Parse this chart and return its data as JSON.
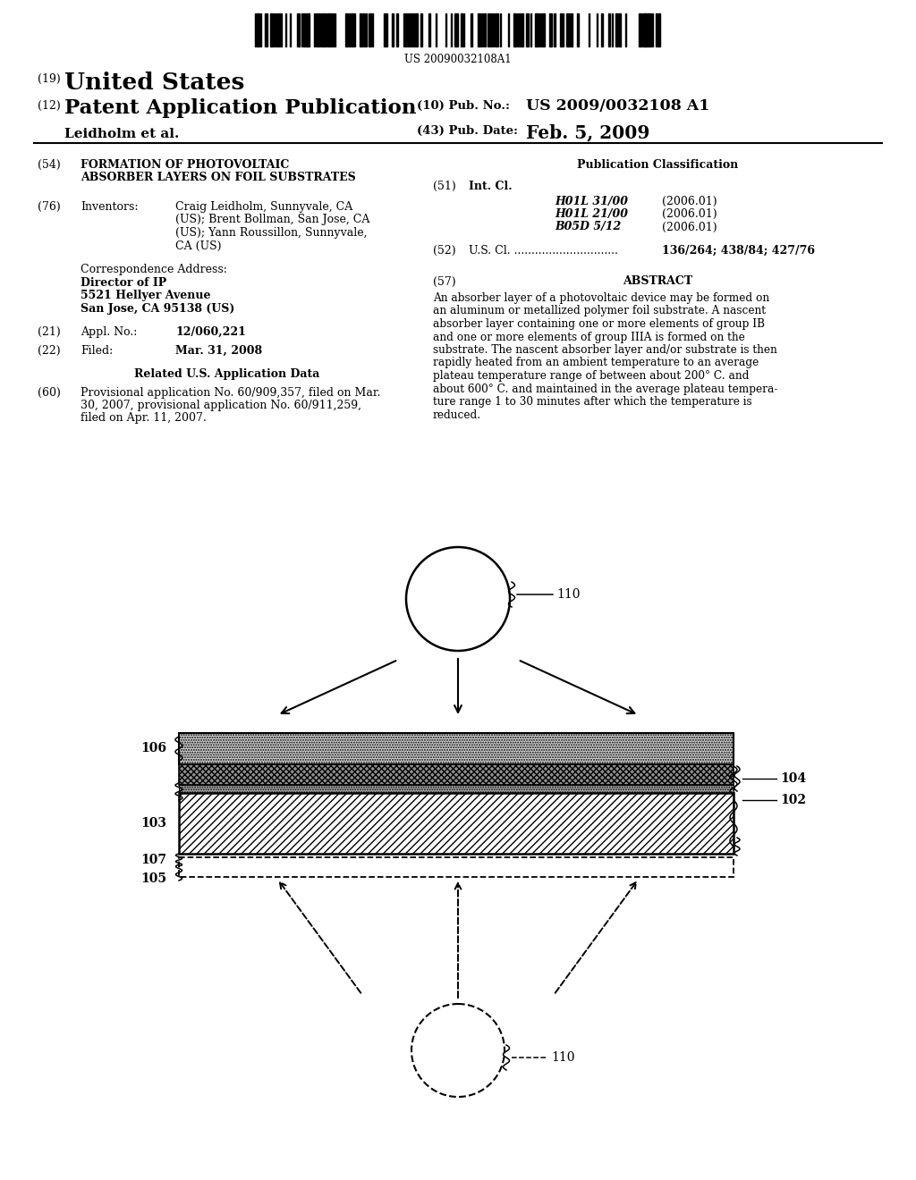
{
  "bg_color": "#ffffff",
  "barcode_text": "US 20090032108A1",
  "title_19": "(19)",
  "title_us": "United States",
  "title_12": "(12)",
  "title_patent": "Patent Application Publication",
  "title_inventors": "Leidholm et al.",
  "pub_no_label": "(10) Pub. No.:",
  "pub_no": "US 2009/0032108 A1",
  "pub_date_label": "(43) Pub. Date:",
  "pub_date": "Feb. 5, 2009",
  "field54_num": "(54)",
  "field54_line1": "FORMATION OF PHOTOVOLTAIC",
  "field54_line2": "ABSORBER LAYERS ON FOIL SUBSTRATES",
  "field76_num": "(76)",
  "field76_label": "Inventors:",
  "inv_line1": "Craig Leidholm, Sunnyvale, CA",
  "inv_line2": "(US); Brent Bollman, San Jose, CA",
  "inv_line3": "(US); Yann Roussillon, Sunnyvale,",
  "inv_line4": "CA (US)",
  "corr_label": "Correspondence Address:",
  "corr_name": "Director of IP",
  "corr_addr1": "5521 Hellyer Avenue",
  "corr_addr2": "San Jose, CA 95138 (US)",
  "field21_num": "(21)",
  "field21_label": "Appl. No.:",
  "field21_val": "12/060,221",
  "field22_num": "(22)",
  "field22_label": "Filed:",
  "field22_val": "Mar. 31, 2008",
  "related_title": "Related U.S. Application Data",
  "field60_num": "(60)",
  "field60_line1": "Provisional application No. 60/909,357, filed on Mar.",
  "field60_line2": "30, 2007, provisional application No. 60/911,259,",
  "field60_line3": "filed on Apr. 11, 2007.",
  "pub_class_title": "Publication Classification",
  "field51_num": "(51)",
  "field51_label": "Int. Cl.",
  "int_cl_entries": [
    [
      "H01L 31/00",
      "(2006.01)"
    ],
    [
      "H01L 21/00",
      "(2006.01)"
    ],
    [
      "B05D 5/12",
      "(2006.01)"
    ]
  ],
  "field52_num": "(52)",
  "field52_label": "U.S. Cl.",
  "field52_dots": "..............................",
  "field52_val": "136/264; 438/84; 427/76",
  "field57_num": "(57)",
  "abstract_title": "ABSTRACT",
  "abstract_lines": [
    "An absorber layer of a photovoltaic device may be formed on",
    "an aluminum or metallized polymer foil substrate. A nascent",
    "absorber layer containing one or more elements of group IB",
    "and one or more elements of group IIIA is formed on the",
    "substrate. The nascent absorber layer and/or substrate is then",
    "rapidly heated from an ambient temperature to an average",
    "plateau temperature range of between about 200° C. and",
    "about 600° C. and maintained in the average plateau tempera-",
    "ture range 1 to 30 minutes after which the temperature is",
    "reduced."
  ],
  "label_106": "106",
  "label_103": "103",
  "label_104": "104",
  "label_102": "102",
  "label_107": "107",
  "label_105": "105",
  "label_110": "110"
}
